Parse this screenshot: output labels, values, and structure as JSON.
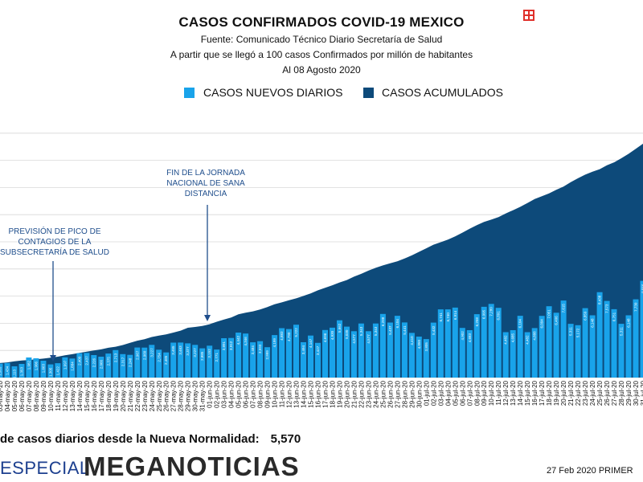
{
  "header": {
    "title": "CASOS CONFIRMADOS COVID-19 MEXICO",
    "source": "Fuente: Comunicado Técnico Diario Secretaría de Salud",
    "subtitle": "A partir que se llegó a 100 casos Confirmados por millón de habitantes",
    "date": "Al 08 Agosto 2020"
  },
  "colors": {
    "daily": "#19a3ea",
    "cumulative": "#0d4a7a",
    "grid": "#d8d8d8",
    "annotation": "#1f4e8c",
    "brand_blue": "#1d56c9"
  },
  "icons": {
    "top_right": "grid-logo-icon"
  },
  "chart_data": {
    "type": "bar",
    "series": [
      {
        "name": "CASOS NUEVOS DIARIOS",
        "type": "bar"
      },
      {
        "name": "CASOS ACUMULADOS",
        "type": "area"
      }
    ],
    "categories": [
      "03-may-20",
      "04-may-20",
      "05-may-20",
      "06-may-20",
      "07-may-20",
      "08-may-20",
      "09-may-20",
      "10-may-20",
      "11-may-20",
      "12-may-20",
      "13-may-20",
      "14-may-20",
      "15-may-20",
      "16-may-20",
      "17-may-20",
      "18-may-20",
      "19-may-20",
      "20-may-20",
      "21-may-20",
      "22-may-20",
      "23-may-20",
      "24-may-20",
      "25-may-20",
      "26-may-20",
      "27-may-20",
      "28-may-20",
      "29-may-20",
      "30-may-20",
      "31-may-20",
      "01-jun-20",
      "02-jun-20",
      "03-jun-20",
      "04-jun-20",
      "05-jun-20",
      "06-jun-20",
      "07-jun-20",
      "08-jun-20",
      "09-jun-20",
      "10-jun-20",
      "11-jun-20",
      "12-jun-20",
      "13-jun-20",
      "14-jun-20",
      "15-jun-20",
      "16-jun-20",
      "17-jun-20",
      "18-jun-20",
      "19-jun-20",
      "20-jun-20",
      "21-jun-20",
      "22-jun-20",
      "23-jun-20",
      "24-jun-20",
      "25-jun-20",
      "26-jun-20",
      "27-jun-20",
      "28-jun-20",
      "29-jun-20",
      "30-jun-20",
      "01-jul-20",
      "02-jul-20",
      "03-jul-20",
      "04-jul-20",
      "05-jul-20",
      "06-jul-20",
      "07-jul-20",
      "08-jul-20",
      "09-jul-20",
      "10-jul-20",
      "11-jul-20",
      "12-jul-20",
      "13-jul-20",
      "14-jul-20",
      "15-jul-20",
      "16-jul-20",
      "17-jul-20",
      "18-jul-20",
      "19-jul-20",
      "20-jul-20",
      "21-jul-20",
      "22-jul-20",
      "23-jul-20",
      "24-jul-20",
      "25-jul-20",
      "26-jul-20",
      "27-jul-20",
      "28-jul-20",
      "29-jul-20",
      "30-jul-20",
      "31-jul-20"
    ],
    "daily_values": [
      1383,
      1434,
      1113,
      1353,
      1982,
      1906,
      1663,
      1305,
      1422,
      1997,
      1884,
      2409,
      2437,
      2226,
      2066,
      2375,
      2713,
      2317,
      2248,
      2967,
      2960,
      3227,
      2754,
      2485,
      3455,
      3463,
      3377,
      3227,
      2885,
      3152,
      2771,
      3891,
      3912,
      4442,
      4346,
      3484,
      3593,
      2999,
      4199,
      4883,
      4790,
      5222,
      3494,
      4147,
      3427,
      4696,
      4930,
      5662,
      5030,
      4577,
      5343,
      4577,
      5343,
      6288,
      5437,
      6104,
      5441,
      4410,
      4050,
      3805,
      5432,
      6741,
      6740,
      6914,
      4902,
      4683,
      6258,
      6995,
      7280,
      6891,
      4482,
      4685,
      6104,
      4482,
      4888,
      6094,
      7051,
      6406,
      7615,
      5311,
      5172,
      6859,
      6148,
      8438,
      7573,
      6751,
      5311,
      6148,
      7730,
      9556
    ],
    "cumulative_approx": [
      27600,
      28860,
      30850,
      32300,
      33400,
      34800,
      35960,
      37700,
      39600,
      42400,
      44400,
      47000,
      49200,
      51600,
      53500,
      56600,
      58500,
      61800,
      65900,
      70000,
      72800,
      77000,
      79600,
      81800,
      85400,
      89100,
      94500,
      96000,
      97900,
      101200,
      106000,
      110000,
      114000,
      120000,
      123000,
      125600,
      129200,
      133900,
      139200,
      142700,
      146800,
      150300,
      154900,
      159800,
      165500,
      170500,
      175200,
      180500,
      185000,
      191400,
      196800,
      202900,
      208300,
      212800,
      216800,
      220700,
      226000,
      231800,
      238500,
      245300,
      252200,
      256900,
      261800,
      268000,
      275000,
      282300,
      289200,
      295300,
      299700,
      304400,
      311400,
      317600,
      324000,
      331300,
      338900,
      344200,
      349400,
      356300,
      362300,
      370700,
      378200,
      385000,
      390500,
      395500,
      402700,
      408400,
      416200,
      424600,
      434200,
      443800
    ],
    "annotations": [
      {
        "text": "PREVISIÓN DE PICO DE CONTAGIOS DE LA SUBSECRETARÍA DE SALUD",
        "category": "08-may-20"
      },
      {
        "text": "FIN DE LA JORNADA NACIONAL DE SANA DISTANCIA",
        "category": "30-may-20"
      }
    ],
    "legend_position": "top",
    "grid": true
  },
  "annotations_text": {
    "a1_l1": "PREVISIÓN DE PICO DE",
    "a1_l2": "CONTAGIOS DE LA",
    "a1_l3": "SUBSECRETARÍA DE SALUD",
    "a2_l1": "FIN DE LA JORNADA",
    "a2_l2": "NACIONAL DE SANA",
    "a2_l3": "DISTANCIA"
  },
  "footer": {
    "stat_label": "de casos diarios desde la Nueva Normalidad:",
    "stat_value": "5,570",
    "brand_prefix": "ESPECIAL",
    "brand_main": "MEGANOTICIAS",
    "broadcast_note": "27 Feb 2020 PRIMER"
  }
}
